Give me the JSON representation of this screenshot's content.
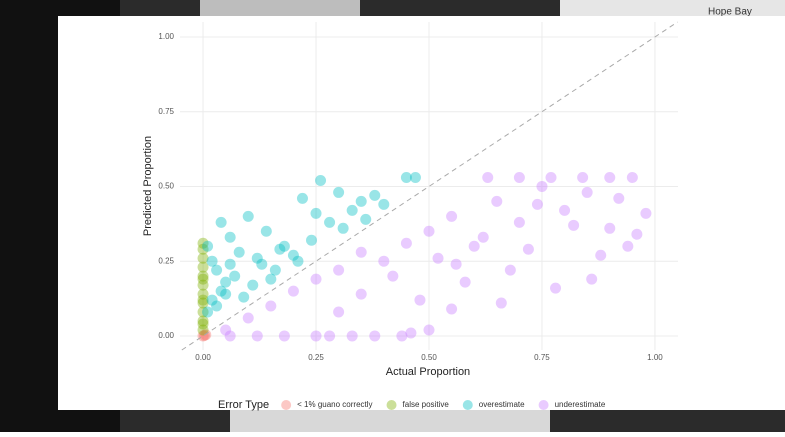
{
  "background_label": "Hope Bay",
  "chart_data": {
    "type": "scatter",
    "x_label": "Actual Proportion",
    "y_label": "Predicted Proportion",
    "xlim": [
      -0.051,
      1.051
    ],
    "ylim": [
      -0.047,
      1.05
    ],
    "xticks": [
      {
        "value": 0,
        "label": "0.00"
      },
      {
        "value": 0.25,
        "label": "0.25"
      },
      {
        "value": 0.5,
        "label": "0.50"
      },
      {
        "value": 0.75,
        "label": "0.75"
      },
      {
        "value": 1,
        "label": "1.00"
      }
    ],
    "yticks": [
      {
        "value": 0,
        "label": "0.00"
      },
      {
        "value": 0.25,
        "label": "0.25"
      },
      {
        "value": 0.5,
        "label": "0.50"
      },
      {
        "value": 0.75,
        "label": "0.75"
      },
      {
        "value": 1,
        "label": "1.00"
      }
    ],
    "grid": true,
    "identity_line": true,
    "legend": "bottom",
    "legend_title": "Error Type",
    "series": [
      {
        "name": "< 1% guano correctly",
        "color": "#F8766D",
        "x": [
          0,
          0.003,
          0.006
        ],
        "y": [
          0,
          0.002,
          0.004
        ]
      },
      {
        "name": "false positive",
        "color": "#7CAE00",
        "x": [
          0,
          0,
          0,
          0,
          0,
          0,
          0,
          0,
          0,
          0,
          0,
          0,
          0,
          0
        ],
        "y": [
          0.02,
          0.05,
          0.08,
          0.11,
          0.14,
          0.17,
          0.2,
          0.23,
          0.26,
          0.29,
          0.31,
          0.04,
          0.12,
          0.19
        ]
      },
      {
        "name": "overestimate",
        "color": "#00BFC4",
        "x": [
          0.01,
          0.02,
          0.03,
          0.04,
          0.05,
          0.06,
          0.08,
          0.1,
          0.12,
          0.14,
          0.16,
          0.18,
          0.2,
          0.22,
          0.24,
          0.26,
          0.28,
          0.3,
          0.33,
          0.36,
          0.4,
          0.45,
          0.47,
          0.02,
          0.04,
          0.07,
          0.09,
          0.11,
          0.13,
          0.15,
          0.01,
          0.03,
          0.05,
          0.06,
          0.17,
          0.21,
          0.25,
          0.31,
          0.35,
          0.38
        ],
        "y": [
          0.3,
          0.25,
          0.22,
          0.38,
          0.18,
          0.33,
          0.28,
          0.4,
          0.26,
          0.35,
          0.22,
          0.3,
          0.27,
          0.46,
          0.32,
          0.52,
          0.38,
          0.48,
          0.42,
          0.39,
          0.44,
          0.53,
          0.53,
          0.12,
          0.15,
          0.2,
          0.13,
          0.17,
          0.24,
          0.19,
          0.08,
          0.1,
          0.14,
          0.24,
          0.29,
          0.25,
          0.41,
          0.36,
          0.45,
          0.47
        ]
      },
      {
        "name": "underestimate",
        "color": "#C77CFF",
        "x": [
          0.05,
          0.1,
          0.15,
          0.2,
          0.25,
          0.3,
          0.35,
          0.4,
          0.45,
          0.5,
          0.55,
          0.6,
          0.65,
          0.7,
          0.75,
          0.8,
          0.85,
          0.9,
          0.95,
          0.98,
          0.3,
          0.35,
          0.42,
          0.48,
          0.52,
          0.58,
          0.62,
          0.68,
          0.72,
          0.78,
          0.82,
          0.88,
          0.92,
          0.96,
          0.25,
          0.38,
          0.46,
          0.55,
          0.63,
          0.7,
          0.77,
          0.84,
          0.9,
          0.06,
          0.12,
          0.18,
          0.28,
          0.33,
          0.44,
          0.5,
          0.56,
          0.66,
          0.74,
          0.86,
          0.94
        ],
        "y": [
          0.02,
          0.06,
          0.1,
          0.15,
          0.19,
          0.22,
          0.28,
          0.25,
          0.31,
          0.35,
          0.4,
          0.3,
          0.45,
          0.38,
          0.5,
          0.42,
          0.48,
          0.36,
          0.53,
          0.41,
          0.08,
          0.14,
          0.2,
          0.12,
          0.26,
          0.18,
          0.33,
          0.22,
          0.29,
          0.16,
          0.37,
          0.27,
          0.46,
          0.34,
          0,
          0,
          0.01,
          0.09,
          0.53,
          0.53,
          0.53,
          0.53,
          0.53,
          0,
          0,
          0,
          0,
          0,
          0,
          0.02,
          0.24,
          0.11,
          0.44,
          0.19,
          0.3
        ]
      }
    ]
  }
}
